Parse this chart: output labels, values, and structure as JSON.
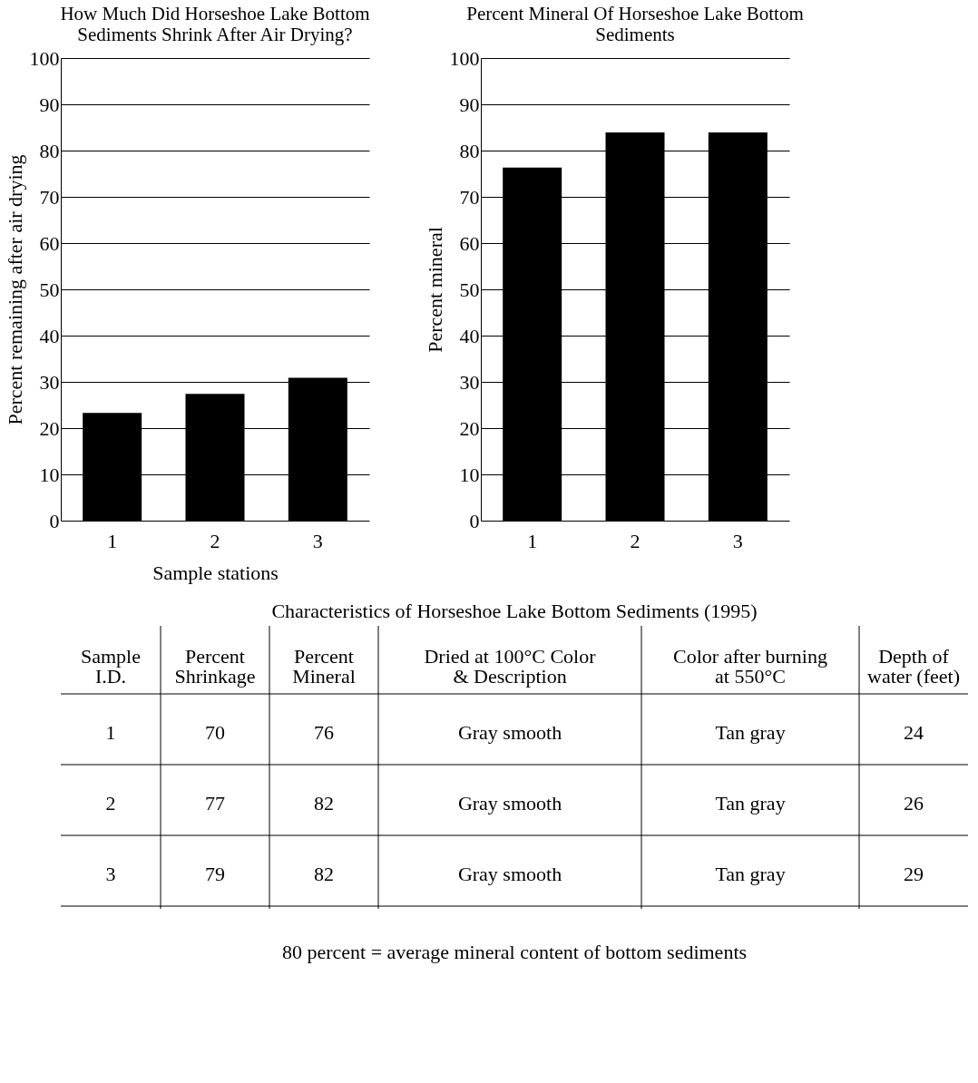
{
  "chart_data": [
    {
      "type": "bar",
      "title": "How Much Did Horseshoe Lake Bottom Sediments Shrink After Air Drying?",
      "ylabel": "Percent remaining after air drying",
      "xlabel": "Sample stations",
      "categories": [
        "1",
        "2",
        "3"
      ],
      "values": [
        23.3,
        27.4,
        30.9
      ],
      "color": "#000000",
      "ylim": [
        0,
        100
      ],
      "yticks": [
        0,
        10,
        20,
        30,
        40,
        50,
        60,
        70,
        80,
        90,
        100
      ],
      "grid": "y"
    },
    {
      "type": "bar",
      "title": "Percent Mineral Of Horseshoe Lake Bottom Sediments",
      "ylabel": "Percent mineral",
      "categories": [
        "1",
        "2",
        "3"
      ],
      "values": [
        76.3,
        83.9,
        83.9
      ],
      "color": "#000000",
      "ylim": [
        0,
        100
      ],
      "yticks": [
        0,
        10,
        20,
        30,
        40,
        50,
        60,
        70,
        80,
        90,
        100
      ],
      "grid": "y"
    },
    {
      "type": "other",
      "title": "Characteristics of Horseshoe Lake Bottom Sediments (1995)",
      "annotations": [
        "Sample I.D.",
        "Percent Shrinkage",
        "Percent Mineral",
        "Dried at 100°C Color & Description",
        "Color after burning at 550°C",
        "Depth of water (feet)",
        "1",
        "70",
        "76",
        "Gray smooth",
        "Tan gray",
        "24",
        "2",
        "77",
        "82",
        "Gray smooth",
        "Tan gray",
        "26",
        "3",
        "79",
        "82",
        "Gray smooth",
        "Tan gray",
        "29",
        "80 percent  =  average mineral content of bottom sediments"
      ]
    }
  ]
}
